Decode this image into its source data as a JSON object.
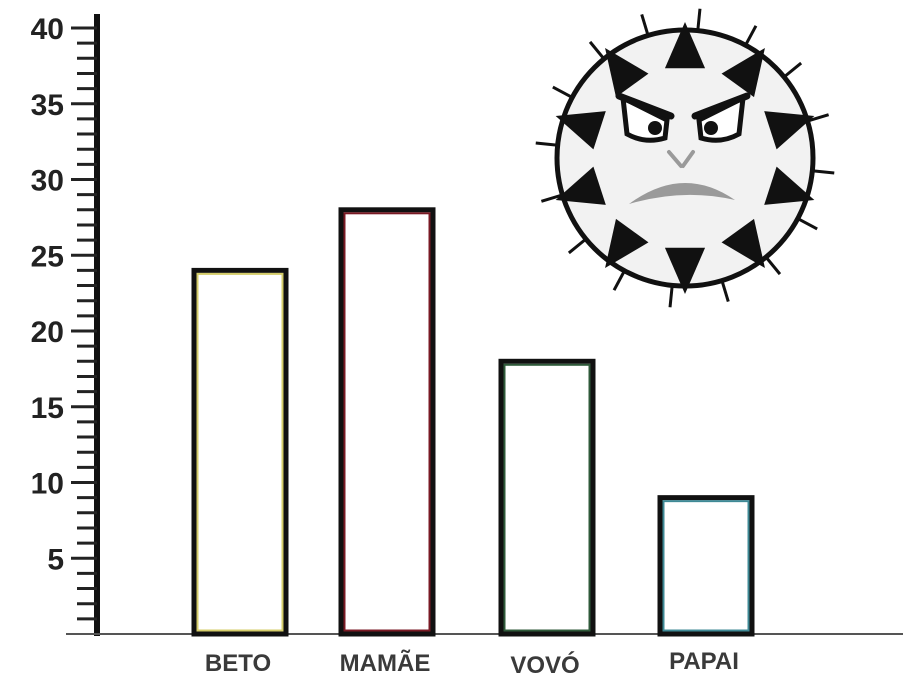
{
  "chart_data": {
    "type": "bar",
    "categories": [
      "BETO",
      "MAMÃE",
      "VOVÓ",
      "PAPAI"
    ],
    "values": [
      24,
      28,
      18,
      9
    ],
    "bar_border_colors": [
      "#d4cc6a",
      "#7a1a24",
      "#2f5a3a",
      "#3f8a96"
    ],
    "y_ticks": [
      5,
      10,
      15,
      20,
      25,
      30,
      35,
      40
    ],
    "y_tick_labels": [
      "5",
      "10",
      "15",
      "20",
      "25",
      "30",
      "35",
      "40"
    ],
    "ylim": [
      0,
      40
    ],
    "minor_tick_step": 1,
    "grid": false,
    "legend": "none",
    "title": "",
    "xlabel": "",
    "ylabel": ""
  },
  "decoration": {
    "icon": "angry-virus-icon",
    "body_color": "#f2f2f2",
    "outline_color": "#111111",
    "mouth_color": "#9a9a9a"
  }
}
